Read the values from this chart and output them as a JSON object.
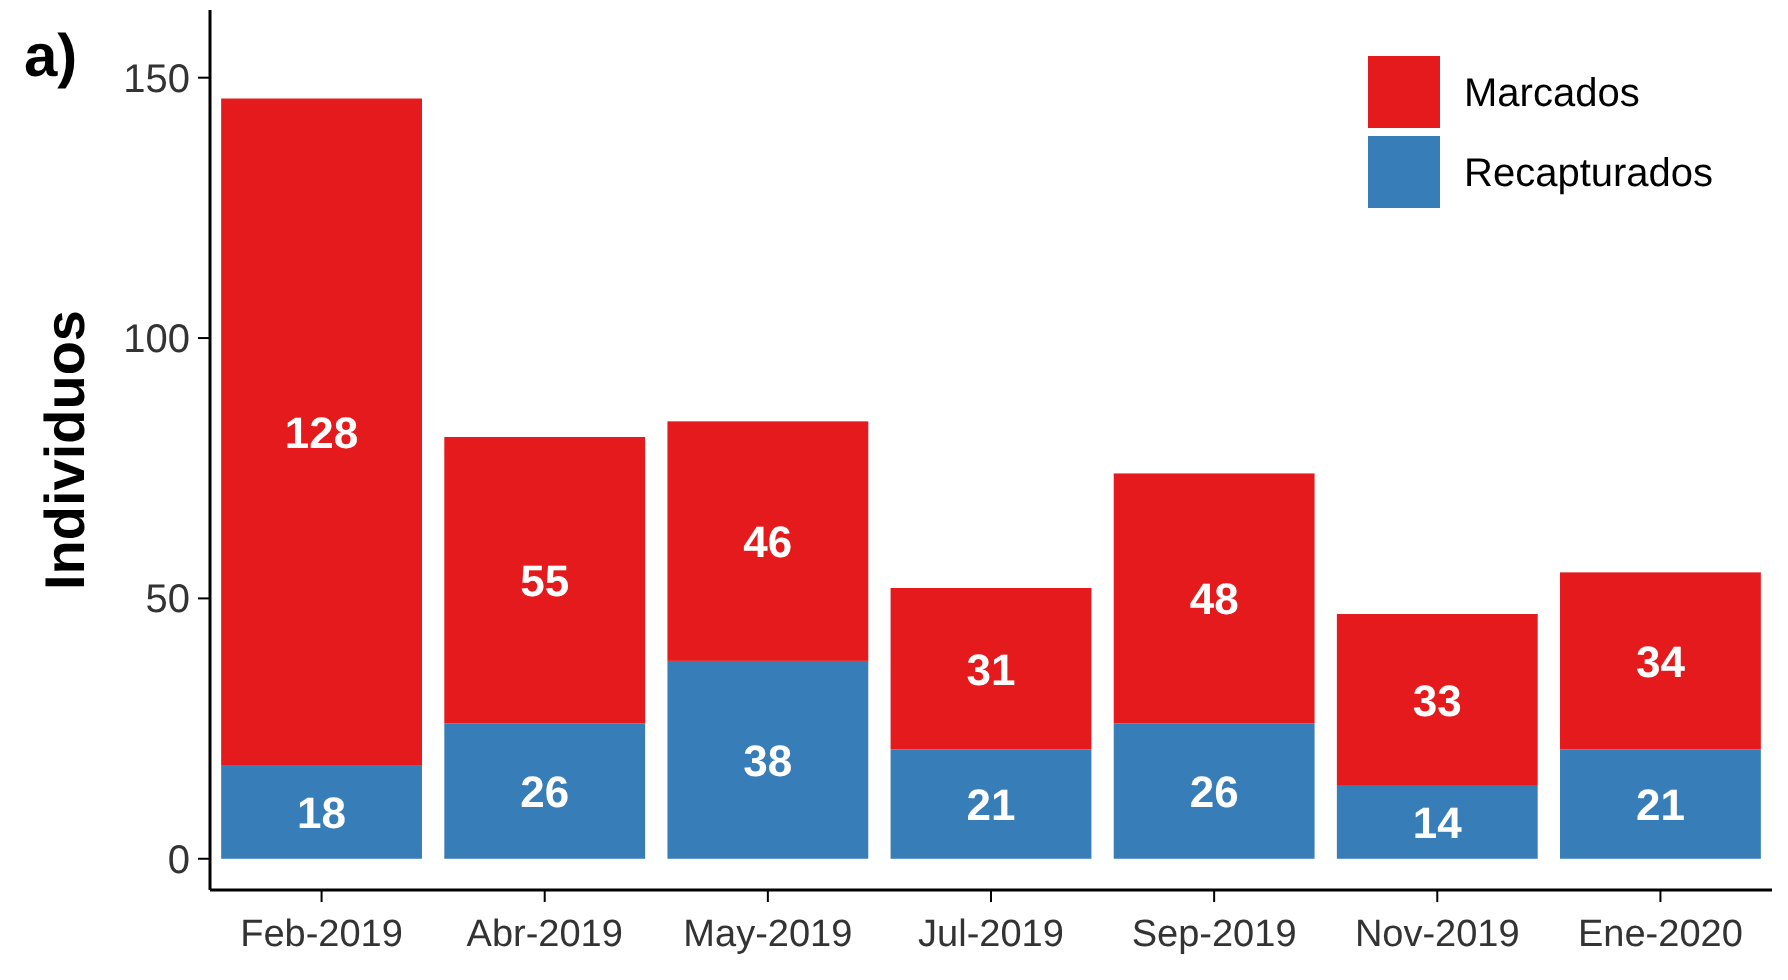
{
  "chart_data": {
    "type": "bar",
    "stacked": true,
    "ylabel": "Individuos",
    "annotations": [
      "a)"
    ],
    "categories": [
      "Feb-2019",
      "Abr-2019",
      "May-2019",
      "Jul-2019",
      "Sep-2019",
      "Nov-2019",
      "Ene-2020"
    ],
    "series": [
      {
        "name": "Recapturados",
        "color": "#377eb8",
        "values": [
          18,
          26,
          38,
          21,
          26,
          14,
          21
        ]
      },
      {
        "name": "Marcados",
        "color": "#e41a1c",
        "values": [
          128,
          55,
          46,
          31,
          48,
          33,
          34
        ]
      }
    ],
    "ylim": [
      -6,
      163
    ],
    "yticks": [
      0,
      50,
      100,
      150
    ],
    "data_labels": true,
    "legend": "top right",
    "grid": false
  }
}
